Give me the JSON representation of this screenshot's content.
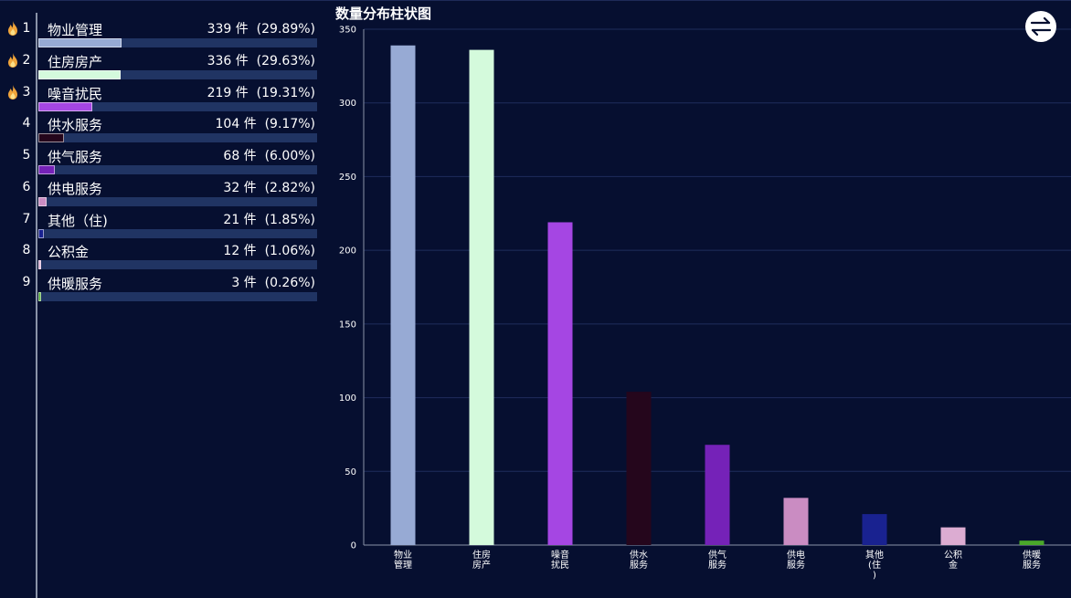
{
  "ranking": {
    "unit": "件",
    "items": [
      {
        "rank": "1",
        "label": "物业管理",
        "count": "339",
        "percent": "(29.89%)",
        "hot": true,
        "color": "#97aad4"
      },
      {
        "rank": "2",
        "label": "住房房产",
        "count": "336",
        "percent": "(29.63%)",
        "hot": true,
        "color": "#d4fadc"
      },
      {
        "rank": "3",
        "label": "噪音扰民",
        "count": "219",
        "percent": "(19.31%)",
        "hot": true,
        "color": "#a546e3"
      },
      {
        "rank": "4",
        "label": "供水服务",
        "count": "104",
        "percent": "(9.17%)",
        "hot": false,
        "color": "#25061c"
      },
      {
        "rank": "5",
        "label": "供气服务",
        "count": "68",
        "percent": "(6.00%)",
        "hot": false,
        "color": "#7522b8"
      },
      {
        "rank": "6",
        "label": "供电服务",
        "count": "32",
        "percent": "(2.82%)",
        "hot": false,
        "color": "#ca8cc2"
      },
      {
        "rank": "7",
        "label": "其他（住)",
        "count": "21",
        "percent": "(1.85%)",
        "hot": false,
        "color": "#192290"
      },
      {
        "rank": "8",
        "label": "公积金",
        "count": "12",
        "percent": "(1.06%)",
        "hot": false,
        "color": "#dcacd2"
      },
      {
        "rank": "9",
        "label": "供暖服务",
        "count": "3",
        "percent": "(0.26%)",
        "hot": false,
        "color": "#4aa82a"
      }
    ]
  },
  "icons": {
    "flame": "flame-icon",
    "toggle": "swap-arrows-icon"
  },
  "chart_data": {
    "type": "bar",
    "title": "数量分布柱状图",
    "categories": [
      "物业管理",
      "住房房产",
      "噪音扰民",
      "供水服务",
      "供气服务",
      "供电服务",
      "其他（住)",
      "公积金",
      "供暖服务"
    ],
    "category_tick_labels": [
      [
        "物业",
        "管理"
      ],
      [
        "住房",
        "房产"
      ],
      [
        "噪音",
        "扰民"
      ],
      [
        "供水",
        "服务"
      ],
      [
        "供气",
        "服务"
      ],
      [
        "供电",
        "服务"
      ],
      [
        "其他",
        "(住",
        ")"
      ],
      [
        "公积",
        "金"
      ],
      [
        "供暖",
        "服务"
      ]
    ],
    "values": [
      339,
      336,
      219,
      104,
      68,
      32,
      21,
      12,
      3
    ],
    "colors": [
      "#97aad4",
      "#d4fadc",
      "#a546e3",
      "#25061c",
      "#7522b8",
      "#ca8cc2",
      "#192290",
      "#dcacd2",
      "#4aa82a"
    ],
    "ylim": [
      0,
      350
    ],
    "yticks": [
      0,
      50,
      100,
      150,
      200,
      250,
      300,
      350
    ],
    "grid": true,
    "xlabel": "",
    "ylabel": ""
  }
}
